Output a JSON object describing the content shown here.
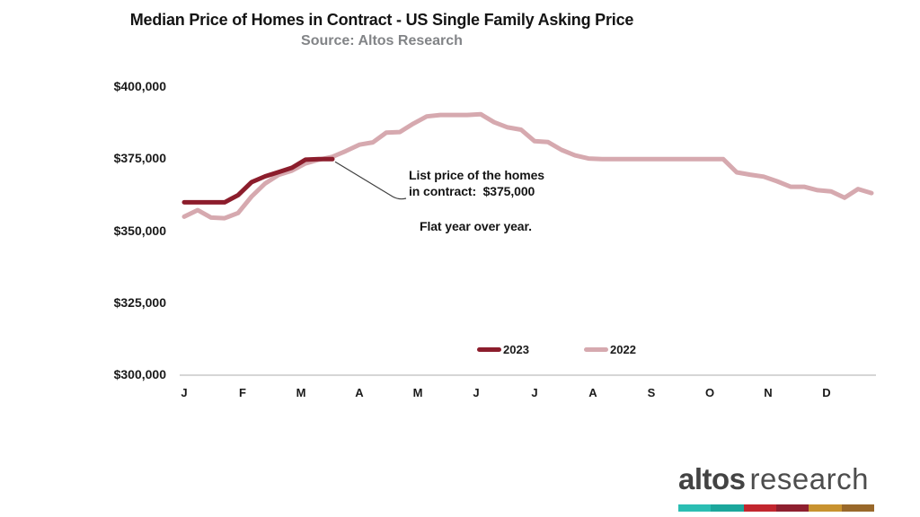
{
  "chart_data": {
    "type": "line",
    "title": "Median Price of Homes in Contract - US Single Family Asking Price",
    "subtitle": "Source: Altos Research",
    "sampling": "weekly",
    "grid": false,
    "legend_position": "bottom-center",
    "x_categories": [
      "J",
      "F",
      "M",
      "A",
      "M",
      "J",
      "J",
      "A",
      "S",
      "O",
      "N",
      "D"
    ],
    "ylim": [
      300000,
      400000
    ],
    "y_ticks": [
      {
        "label": "$400,000",
        "value": 400000
      },
      {
        "label": "$375,000",
        "value": 375000
      },
      {
        "label": "$350,000",
        "value": 350000
      },
      {
        "label": "$325,000",
        "value": 325000
      },
      {
        "label": "$300,000",
        "value": 300000
      }
    ],
    "series": [
      {
        "name": "2023",
        "color": "#8C1D2C",
        "values": [
          360000,
          360000,
          360000,
          360000,
          362500,
          367000,
          369000,
          370500,
          372000,
          374800,
          375000,
          375000
        ]
      },
      {
        "name": "2022",
        "color": "#D6A9AF",
        "values": [
          355000,
          357300,
          354700,
          354500,
          356300,
          362000,
          366500,
          369500,
          371000,
          373500,
          374800,
          375800,
          377800,
          380000,
          380800,
          384200,
          384400,
          387300,
          389800,
          390300,
          390300,
          390300,
          390600,
          387800,
          386000,
          385200,
          381200,
          380900,
          378200,
          376300,
          375200,
          375000,
          375000,
          375000,
          375000,
          375000,
          375000,
          375000,
          375000,
          375000,
          375000,
          370400,
          369600,
          368900,
          367300,
          365400,
          365400,
          364200,
          363800,
          361600,
          364600,
          363200
        ]
      }
    ],
    "annotation": {
      "line1": "List price of the homes",
      "line2": "in contract:  $375,000",
      "line3": "Flat year over year.",
      "attach_value": 375000
    }
  },
  "legend": {
    "items": [
      {
        "label": "2023",
        "color": "#8C1D2C"
      },
      {
        "label": "2022",
        "color": "#D6A9AF"
      }
    ]
  },
  "logo": {
    "brand_bold": "altos",
    "brand_light": "research",
    "bar_colors": [
      "#2BBEB3",
      "#1BA79C",
      "#C2262E",
      "#8E1F2F",
      "#C8922F",
      "#99682A"
    ]
  },
  "colors": {
    "axis_line": "#c9c9c9",
    "leader_line": "#3f3f3f",
    "title": "#141414",
    "subtitle": "#828487"
  }
}
